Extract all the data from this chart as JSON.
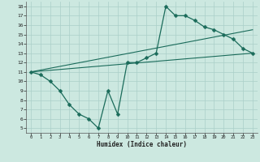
{
  "title": "",
  "xlabel": "Humidex (Indice chaleur)",
  "bg_color": "#cce8e0",
  "line_color": "#1a6b5a",
  "grid_color": "#aacfc8",
  "xlim": [
    -0.5,
    23.5
  ],
  "ylim": [
    4.5,
    18.5
  ],
  "yticks": [
    5,
    6,
    7,
    8,
    9,
    10,
    11,
    12,
    13,
    14,
    15,
    16,
    17,
    18
  ],
  "xticks": [
    0,
    1,
    2,
    3,
    4,
    5,
    6,
    7,
    8,
    9,
    10,
    11,
    12,
    13,
    14,
    15,
    16,
    17,
    18,
    19,
    20,
    21,
    22,
    23
  ],
  "line1_x": [
    0,
    1,
    2,
    3,
    4,
    5,
    6,
    7,
    8,
    9,
    10,
    11,
    12,
    13,
    14,
    15,
    16,
    17,
    18,
    19,
    20,
    21,
    22,
    23
  ],
  "line1_y": [
    11,
    10.7,
    10,
    9,
    7.5,
    6.5,
    6.0,
    5.0,
    9.0,
    6.5,
    12.0,
    12.0,
    12.5,
    13.0,
    18.0,
    17.0,
    17.0,
    16.5,
    15.8,
    15.5,
    15.0,
    14.5,
    13.5,
    13.0
  ],
  "line2_x": [
    0,
    23
  ],
  "line2_y": [
    11,
    13.0
  ],
  "line3_x": [
    0,
    23
  ],
  "line3_y": [
    11,
    15.5
  ],
  "markersize": 2.5
}
